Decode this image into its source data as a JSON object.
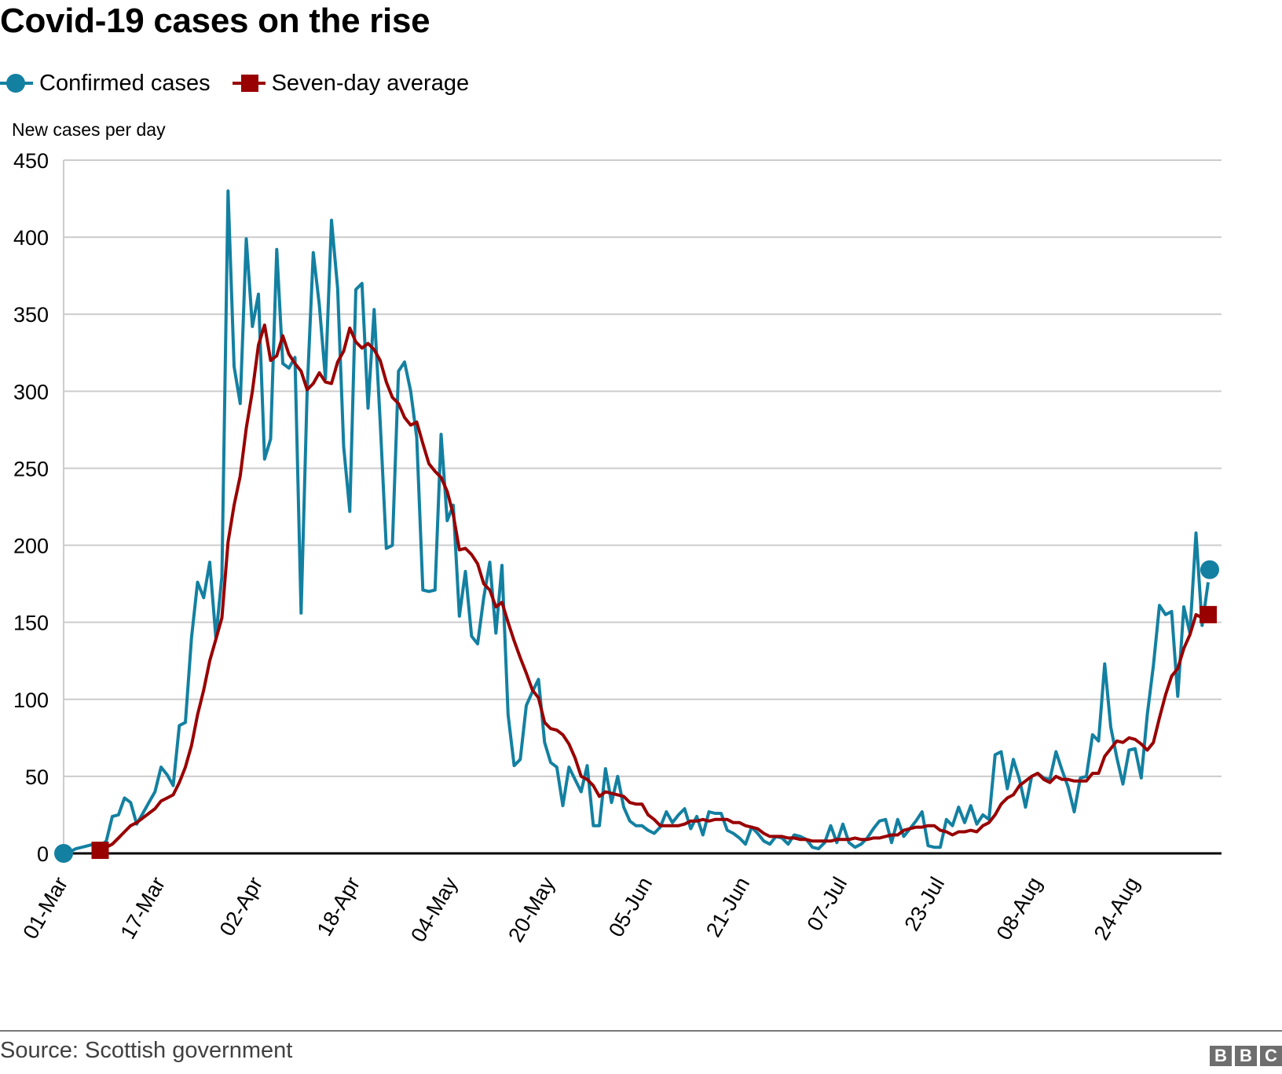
{
  "title": "Covid-19 cases on the rise",
  "legend": [
    {
      "label": "Confirmed cases",
      "color": "#1380a1",
      "marker": "circle"
    },
    {
      "label": "Seven-day average",
      "color": "#990000",
      "marker": "square"
    }
  ],
  "footer": {
    "source": "Source: Scottish government",
    "logo_letters": [
      "B",
      "B",
      "C"
    ]
  },
  "chart_data": {
    "type": "line",
    "title": "Covid-19 cases on the rise",
    "xlabel": "",
    "ylabel": "New cases per day",
    "ylim": [
      0,
      450
    ],
    "yticks": [
      0,
      50,
      100,
      150,
      200,
      250,
      300,
      350,
      400,
      450
    ],
    "xtick_labels": [
      "01-Mar",
      "17-Mar",
      "02-Apr",
      "18-Apr",
      "04-May",
      "20-May",
      "05-Jun",
      "21-Jun",
      "07-Jul",
      "23-Jul",
      "08-Aug",
      "24-Aug"
    ],
    "xtick_day_index": [
      0,
      16,
      32,
      48,
      64,
      80,
      96,
      112,
      128,
      144,
      160,
      176
    ],
    "x_start": "01-Mar",
    "grid": true,
    "legend_position": "top-left",
    "series": [
      {
        "name": "Confirmed cases",
        "color": "#1380a1",
        "values": [
          0,
          1,
          3,
          4,
          5,
          6,
          5,
          8,
          24,
          25,
          36,
          33,
          19,
          26,
          33,
          40,
          56,
          51,
          44,
          83,
          85,
          140,
          176,
          166,
          189,
          140,
          180,
          430,
          316,
          292,
          399,
          342,
          363,
          256,
          269,
          392,
          318,
          315,
          322,
          156,
          300,
          390,
          356,
          308,
          411,
          367,
          264,
          222,
          366,
          370,
          289,
          353,
          280,
          198,
          200,
          313,
          319,
          300,
          270,
          171,
          170,
          171,
          272,
          216,
          226,
          154,
          183,
          141,
          136,
          166,
          189,
          143,
          187,
          90,
          57,
          61,
          96,
          105,
          113,
          72,
          59,
          56,
          31,
          56,
          48,
          40,
          57,
          18,
          18,
          55,
          33,
          50,
          30,
          21,
          18,
          18,
          15,
          13,
          17,
          27,
          20,
          25,
          29,
          16,
          24,
          12,
          27,
          26,
          26,
          15,
          13,
          10,
          6,
          17,
          13,
          8,
          6,
          11,
          10,
          6,
          12,
          11,
          9,
          4,
          3,
          7,
          18,
          7,
          19,
          7,
          4,
          6,
          10,
          16,
          21,
          22,
          7,
          22,
          11,
          16,
          21,
          27,
          5,
          4,
          4,
          22,
          18,
          30,
          20,
          31,
          19,
          25,
          22,
          64,
          66,
          42,
          61,
          48,
          30,
          50,
          52,
          49,
          48,
          66,
          54,
          43,
          27,
          49,
          50,
          77,
          73,
          123,
          82,
          62,
          45,
          67,
          68,
          49,
          90,
          122,
          161,
          155,
          157,
          102,
          160,
          143,
          208,
          148,
          176
        ]
      },
      {
        "name": "Seven-day average",
        "color": "#990000",
        "values": [
          null,
          null,
          null,
          null,
          null,
          null,
          2,
          4,
          6,
          10,
          14,
          18,
          20,
          23,
          26,
          29,
          34,
          36,
          38,
          46,
          56,
          70,
          90,
          106,
          125,
          139,
          153,
          202,
          226,
          245,
          276,
          300,
          330,
          343,
          320,
          323,
          336,
          324,
          318,
          313,
          301,
          305,
          312,
          306,
          305,
          319,
          326,
          341,
          332,
          328,
          331,
          327,
          320,
          306,
          296,
          292,
          283,
          278,
          280,
          266,
          253,
          248,
          244,
          235,
          220,
          197,
          198,
          194,
          188,
          175,
          171,
          160,
          163,
          150,
          138,
          127,
          117,
          106,
          101,
          85,
          81,
          80,
          77,
          71,
          62,
          50,
          48,
          44,
          37,
          40,
          39,
          38,
          37,
          33,
          32,
          32,
          25,
          22,
          18,
          18,
          18,
          18,
          19,
          21,
          21,
          22,
          21,
          22,
          22,
          22,
          20,
          20,
          18,
          17,
          16,
          13,
          11,
          11,
          11,
          10,
          10,
          9,
          9,
          8,
          8,
          8,
          8,
          9,
          9,
          9,
          10,
          9,
          9,
          10,
          10,
          11,
          12,
          12,
          15,
          16,
          17,
          17,
          18,
          18,
          15,
          14,
          12,
          14,
          14,
          15,
          14,
          18,
          20,
          25,
          32,
          36,
          38,
          44,
          47,
          50,
          52,
          48,
          46,
          50,
          48,
          48,
          47,
          47,
          47,
          52,
          52,
          63,
          68,
          73,
          72,
          75,
          74,
          71,
          67,
          72,
          88,
          103,
          115,
          120,
          133,
          142,
          155,
          153,
          155
        ]
      }
    ]
  }
}
